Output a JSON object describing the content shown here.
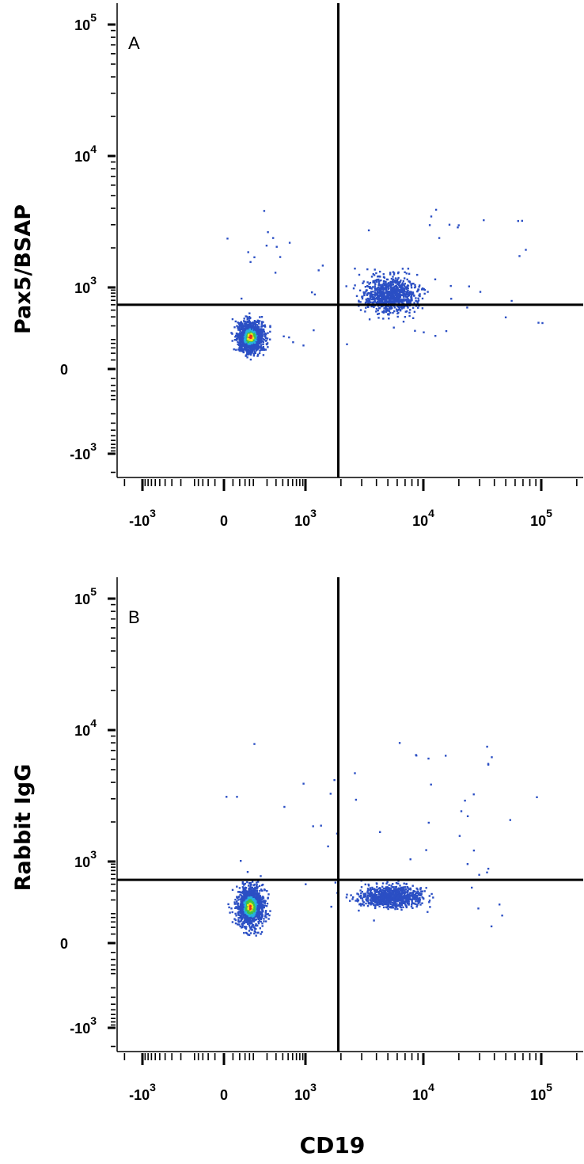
{
  "chart_data": [
    {
      "type": "scatter",
      "panel_label": "A",
      "xlabel": "",
      "ylabel": "Pax5/BSAP",
      "x_scale": "biexponential",
      "y_scale": "biexponential",
      "x_ticks": [
        {
          "base": "-10",
          "exp": "3",
          "value": -1000
        },
        {
          "base": "0",
          "exp": "",
          "value": 0
        },
        {
          "base": "10",
          "exp": "3",
          "value": 1000
        },
        {
          "base": "10",
          "exp": "4",
          "value": 10000
        },
        {
          "base": "10",
          "exp": "5",
          "value": 100000
        }
      ],
      "y_ticks": [
        {
          "base": "10",
          "exp": "5",
          "value": 100000
        },
        {
          "base": "10",
          "exp": "4",
          "value": 10000
        },
        {
          "base": "10",
          "exp": "3",
          "value": 1000
        },
        {
          "base": "0",
          "exp": "",
          "value": 0
        },
        {
          "base": "-10",
          "exp": "3",
          "value": -1000
        }
      ],
      "quadrant_gate": {
        "x": 1900,
        "y": 500
      },
      "populations": [
        {
          "name": "",
          "center": [
            80,
            120
          ],
          "spread_x": 70,
          "spread_y": 110,
          "density": "high"
        },
        {
          "name": "",
          "center": [
            5200,
            750
          ],
          "spread_x": 2600,
          "spread_y": 380,
          "density": "medium"
        }
      ]
    },
    {
      "type": "scatter",
      "panel_label": "B",
      "xlabel": "CD19",
      "ylabel": "Rabbit IgG",
      "x_scale": "biexponential",
      "y_scale": "biexponential",
      "x_ticks": [
        {
          "base": "-10",
          "exp": "3",
          "value": -1000
        },
        {
          "base": "0",
          "exp": "",
          "value": 0
        },
        {
          "base": "10",
          "exp": "3",
          "value": 1000
        },
        {
          "base": "10",
          "exp": "4",
          "value": 10000
        },
        {
          "base": "10",
          "exp": "5",
          "value": 100000
        }
      ],
      "y_ticks": [
        {
          "base": "10",
          "exp": "5",
          "value": 100000
        },
        {
          "base": "10",
          "exp": "4",
          "value": 10000
        },
        {
          "base": "10",
          "exp": "3",
          "value": 1000
        },
        {
          "base": "0",
          "exp": "",
          "value": 0
        },
        {
          "base": "-10",
          "exp": "3",
          "value": -1000
        }
      ],
      "quadrant_gate": {
        "x": 1900,
        "y": 480
      },
      "populations": [
        {
          "name": "",
          "center": [
            80,
            150
          ],
          "spread_x": 70,
          "spread_y": 180,
          "density": "high"
        },
        {
          "name": "",
          "center": [
            5200,
            240
          ],
          "spread_x": 3000,
          "spread_y": 110,
          "density": "medium"
        }
      ]
    }
  ],
  "colors": {
    "axis": "#000000",
    "gate": "#000000",
    "density_low": "#2b4fc4",
    "density_mid": "#27b0e0",
    "density_midhigh": "#3cc24a",
    "density_high": "#f2e31b",
    "density_peak": "#e8281e"
  }
}
